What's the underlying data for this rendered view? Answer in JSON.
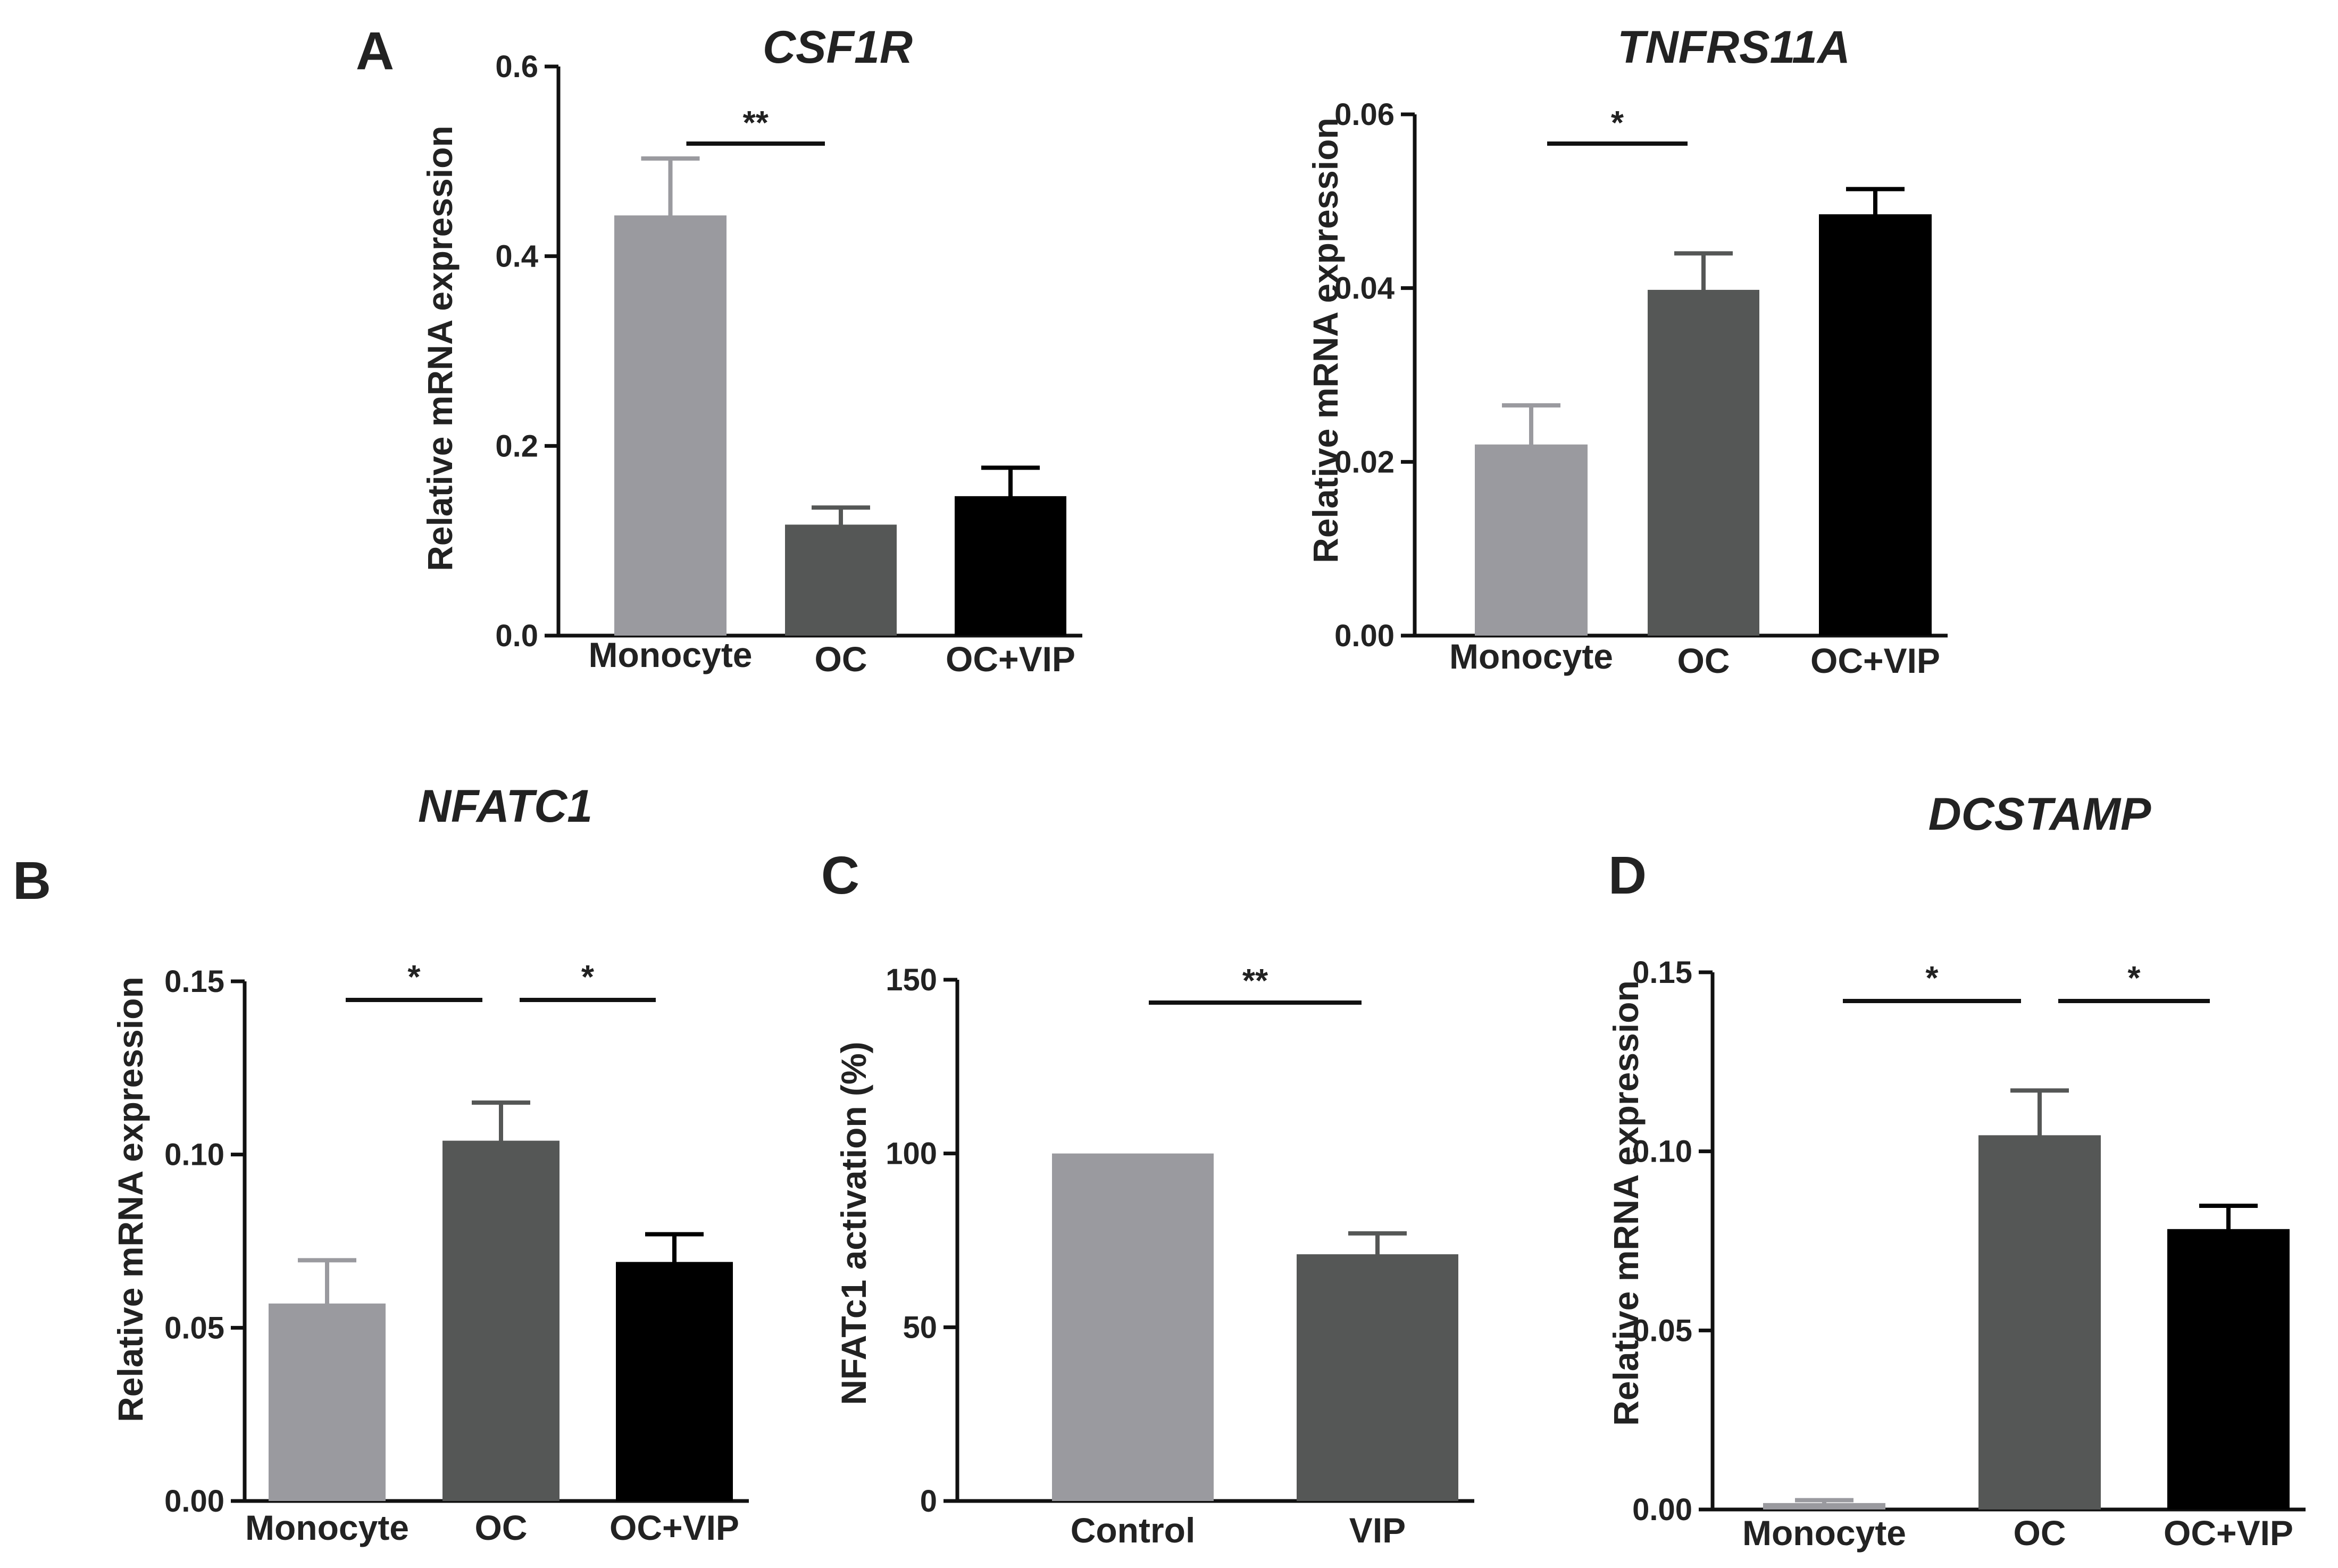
{
  "chart_data": [
    {
      "panel": "A",
      "type": "bar",
      "title": "CSF1R",
      "xlabel": "",
      "ylabel": "Relative mRNA expression",
      "categories": [
        "Monocyte",
        "OC",
        "OC+VIP"
      ],
      "values": [
        0.443,
        0.117,
        0.147
      ],
      "errors": [
        0.06,
        0.018,
        0.03
      ],
      "colors": [
        "#9a9a9f",
        "#555756",
        "#000000"
      ],
      "ylim": [
        0,
        0.6
      ],
      "yticks": [
        "0.0",
        "0.2",
        "0.4",
        "0.6"
      ],
      "significance": [
        {
          "from": 0,
          "to": 1,
          "label": "**"
        }
      ]
    },
    {
      "panel": "",
      "type": "bar",
      "title": "TNFRS11A",
      "xlabel": "",
      "ylabel": "Relative mRNA expression",
      "categories": [
        "Monocyte",
        "OC",
        "OC+VIP"
      ],
      "values": [
        0.022,
        0.0398,
        0.0485
      ],
      "errors": [
        0.0045,
        0.0042,
        0.0029
      ],
      "colors": [
        "#9a9a9f",
        "#555756",
        "#000000"
      ],
      "ylim": [
        0,
        0.06
      ],
      "yticks": [
        "0.00",
        "0.02",
        "0.04",
        "0.06"
      ],
      "significance": [
        {
          "from": 0,
          "to": 1,
          "label": "*"
        }
      ]
    },
    {
      "panel": "B",
      "type": "bar",
      "title": "NFATC1",
      "xlabel": "",
      "ylabel": "Relative mRNA expression",
      "categories": [
        "Monocyte",
        "OC",
        "OC+VIP"
      ],
      "values": [
        0.057,
        0.104,
        0.069
      ],
      "errors": [
        0.0125,
        0.011,
        0.008
      ],
      "colors": [
        "#9a9a9f",
        "#555756",
        "#000000"
      ],
      "ylim": [
        0,
        0.15
      ],
      "yticks": [
        "0.00",
        "0.05",
        "0.10",
        "0.15"
      ],
      "significance": [
        {
          "from": 0,
          "to": 1,
          "label": "*"
        },
        {
          "from": 1,
          "to": 2,
          "label": "*"
        }
      ]
    },
    {
      "panel": "C",
      "type": "bar",
      "title": "",
      "xlabel": "",
      "ylabel": "NFATc1 activation (%)",
      "categories": [
        "Control",
        "VIP"
      ],
      "values": [
        100,
        71
      ],
      "errors": [
        0,
        6
      ],
      "colors": [
        "#9a9a9f",
        "#555756"
      ],
      "ylim": [
        0,
        150
      ],
      "yticks": [
        "0",
        "50",
        "100",
        "150"
      ],
      "significance": [
        {
          "from": 0,
          "to": 1,
          "label": "**"
        }
      ]
    },
    {
      "panel": "D",
      "type": "bar",
      "title": "DCSTAMP",
      "xlabel": "",
      "ylabel": "Relative mRNA expression",
      "categories": [
        "Monocyte",
        "OC",
        "OC+VIP"
      ],
      "values": [
        0.0018,
        0.1045,
        0.0783
      ],
      "errors": [
        0.0008,
        0.0125,
        0.0065
      ],
      "colors": [
        "#9a9a9f",
        "#555756",
        "#000000"
      ],
      "ylim": [
        0,
        0.15
      ],
      "yticks": [
        "0.00",
        "0.05",
        "0.10",
        "0.15"
      ],
      "significance": [
        {
          "from": 0,
          "to": 1,
          "label": "*"
        },
        {
          "from": 1,
          "to": 2,
          "label": "*"
        }
      ]
    }
  ]
}
